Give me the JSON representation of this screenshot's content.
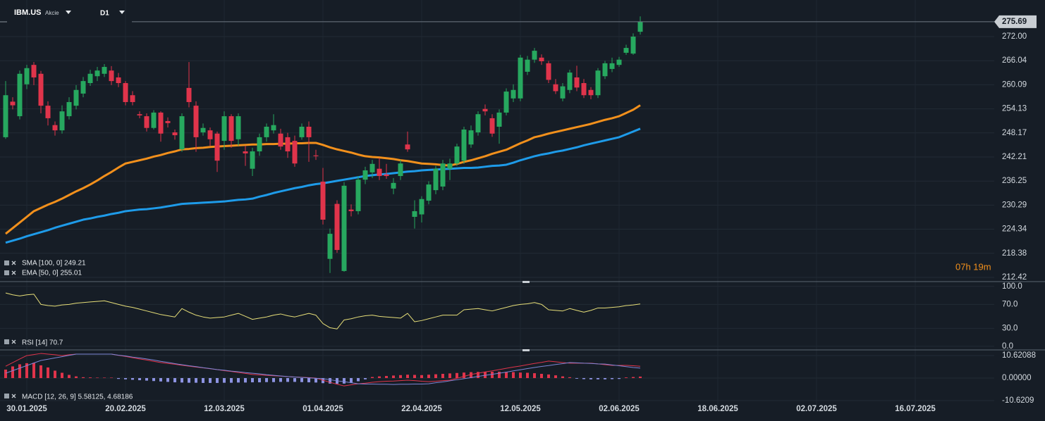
{
  "chart_data": [
    {
      "type": "candlestick",
      "symbol": "IBM.US",
      "instrument_type": "Akcie",
      "timeframe": "D1",
      "countdown": "07h 19m",
      "up_color": "#27a85f",
      "down_color": "#e0344b",
      "open": [
        247.1,
        255.9,
        252.3,
        260.2,
        265.0,
        262.8,
        254.9,
        250.1,
        248.8,
        252.3,
        254.9,
        257.9,
        260.5,
        262.2,
        262.8,
        263.6,
        261.9,
        260.5,
        257.5,
        252.8,
        252.3,
        249.4,
        253.2,
        251.1,
        248.3,
        244.1,
        259.3,
        254.9,
        248.3,
        248.8,
        248.0,
        246.2,
        252.3,
        246.6,
        243.6,
        239.3,
        243.6,
        247.1,
        248.8,
        248.0,
        247.1,
        246.2,
        247.1,
        249.7,
        242.6,
        236.1,
        217.0,
        230.6,
        214.0,
        229.2,
        228.8,
        236.6,
        238.4,
        239.3,
        237.9,
        234.4,
        237.5,
        245.3,
        227.4,
        228.0,
        231.4,
        234.0,
        234.9,
        239.3,
        240.6,
        241.3,
        245.3,
        248.3,
        254.1,
        251.8,
        249.7,
        253.2,
        256.7,
        256.7,
        263.3,
        266.3,
        266.8,
        265.4,
        260.2,
        256.7,
        258.8,
        261.9,
        260.5,
        258.8,
        257.5,
        262.2,
        264.0,
        265.0,
        268.0,
        267.8,
        273.2
      ],
      "high": [
        261.0,
        257.0,
        263.6,
        265.0,
        265.7,
        263.5,
        256.0,
        251.0,
        255.0,
        257.0,
        260.0,
        262.0,
        263.8,
        264.5,
        265.2,
        264.7,
        263.0,
        261.0,
        258.5,
        253.5,
        253.0,
        253.8,
        253.5,
        252.0,
        249.0,
        253.0,
        265.7,
        256.0,
        250.5,
        249.5,
        248.5,
        253.5,
        252.8,
        253.0,
        245.0,
        244.5,
        248.0,
        250.5,
        252.8,
        249.2,
        248.2,
        247.5,
        250.5,
        251.0,
        244.0,
        239.5,
        224.5,
        231.5,
        236.0,
        230.5,
        237.5,
        239.8,
        241.5,
        242.0,
        240.5,
        237.0,
        241.5,
        248.5,
        231.5,
        232.5,
        236.2,
        240.0,
        241.5,
        241.8,
        245.5,
        249.7,
        250.0,
        253.5,
        255.2,
        252.8,
        254.0,
        259.2,
        260.2,
        267.5,
        267.2,
        269.2,
        267.6,
        266.0,
        261.5,
        260.5,
        263.8,
        264.8,
        261.5,
        259.5,
        264.2,
        266.0,
        266.8,
        267.0,
        270.0,
        272.8,
        277.0
      ],
      "low": [
        246.7,
        254.0,
        251.5,
        259.0,
        260.0,
        253.0,
        250.0,
        247.5,
        248.0,
        251.5,
        254.0,
        257.0,
        259.8,
        261.0,
        262.0,
        260.0,
        259.5,
        255.0,
        255.0,
        251.8,
        248.5,
        249.0,
        246.0,
        249.5,
        246.5,
        243.5,
        254.5,
        243.5,
        247.5,
        245.0,
        238.5,
        244.0,
        244.5,
        245.0,
        240.0,
        237.5,
        242.5,
        246.0,
        248.0,
        244.0,
        242.0,
        239.8,
        246.5,
        241.0,
        241.5,
        225.5,
        213.5,
        218.5,
        213.8,
        227.5,
        228.0,
        235.5,
        237.0,
        236.5,
        236.8,
        233.0,
        236.5,
        243.5,
        224.5,
        226.0,
        230.5,
        233.0,
        234.0,
        236.5,
        240.0,
        240.5,
        244.5,
        247.5,
        252.5,
        247.2,
        245.5,
        252.5,
        255.8,
        256.0,
        262.5,
        265.5,
        265.0,
        260.5,
        257.8,
        256.0,
        258.0,
        258.5,
        256.8,
        256.5,
        256.8,
        261.5,
        263.2,
        264.5,
        267.5,
        267.5,
        272.5
      ],
      "close": [
        257.5,
        255.0,
        262.8,
        264.2,
        261.9,
        254.9,
        251.8,
        248.8,
        253.5,
        255.8,
        258.8,
        261.0,
        262.8,
        263.6,
        264.5,
        261.0,
        260.5,
        255.8,
        255.8,
        252.5,
        249.4,
        253.2,
        248.0,
        250.6,
        247.6,
        252.3,
        255.8,
        247.1,
        249.4,
        246.6,
        241.3,
        252.3,
        246.2,
        252.3,
        243.1,
        243.6,
        247.1,
        249.7,
        250.1,
        244.8,
        243.6,
        240.6,
        249.7,
        247.1,
        242.4,
        226.7,
        223.2,
        219.2,
        235.1,
        228.8,
        236.6,
        238.9,
        240.5,
        237.5,
        237.5,
        235.8,
        240.6,
        244.1,
        228.8,
        231.8,
        235.4,
        239.3,
        240.6,
        240.6,
        244.8,
        249.0,
        248.8,
        252.8,
        253.5,
        248.0,
        253.2,
        258.4,
        258.8,
        266.8,
        266.3,
        268.5,
        265.9,
        261.3,
        258.5,
        259.7,
        263.1,
        259.4,
        257.5,
        257.5,
        263.6,
        265.4,
        265.4,
        266.3,
        269.2,
        272.0,
        275.69
      ],
      "series": [
        {
          "name": "SMA [100, 0] 249.21",
          "color": "#1e9be9",
          "values": [
            221.0,
            221.5,
            222.0,
            222.6,
            223.1,
            223.6,
            224.1,
            224.7,
            225.2,
            225.7,
            226.2,
            226.7,
            227.0,
            227.4,
            227.7,
            228.1,
            228.4,
            228.8,
            229.0,
            229.2,
            229.3,
            229.5,
            229.7,
            230.0,
            230.3,
            230.6,
            230.7,
            230.8,
            230.9,
            231.0,
            231.1,
            231.2,
            231.4,
            231.6,
            231.7,
            231.9,
            232.4,
            232.8,
            233.3,
            233.7,
            234.1,
            234.5,
            234.8,
            235.2,
            235.5,
            235.7,
            236.0,
            236.3,
            236.6,
            236.9,
            237.2,
            237.5,
            237.7,
            237.9,
            238.0,
            238.2,
            238.4,
            238.6,
            238.7,
            238.9,
            239.0,
            239.1,
            239.2,
            239.3,
            239.4,
            239.5,
            239.5,
            239.6,
            239.8,
            240.0,
            240.1,
            240.3,
            240.8,
            241.4,
            241.9,
            242.4,
            242.8,
            243.1,
            243.5,
            243.8,
            244.2,
            244.6,
            245.1,
            245.5,
            245.9,
            246.3,
            246.7,
            247.1,
            247.8,
            248.5,
            249.21
          ]
        },
        {
          "name": "EMA [50, 0] 255.01",
          "color": "#f2901c",
          "values": [
            223.2,
            224.6,
            226.0,
            227.4,
            228.8,
            229.6,
            230.4,
            231.1,
            231.9,
            232.8,
            233.7,
            234.5,
            235.4,
            236.4,
            237.5,
            238.5,
            239.6,
            240.6,
            241.0,
            241.4,
            241.8,
            242.3,
            242.7,
            243.2,
            243.6,
            244.1,
            244.2,
            244.4,
            244.5,
            244.7,
            244.8,
            244.9,
            245.0,
            245.1,
            245.2,
            245.3,
            245.3,
            245.4,
            245.4,
            245.5,
            245.5,
            245.6,
            245.6,
            245.7,
            245.7,
            245.2,
            244.6,
            244.1,
            243.7,
            243.3,
            242.8,
            242.4,
            242.2,
            242.1,
            241.9,
            241.7,
            241.4,
            241.2,
            240.9,
            240.6,
            240.5,
            240.4,
            240.2,
            240.1,
            240.5,
            241.0,
            241.4,
            241.9,
            242.4,
            243.0,
            243.5,
            244.0,
            244.8,
            245.6,
            246.3,
            247.1,
            247.5,
            248.0,
            248.4,
            248.8,
            249.2,
            249.6,
            250.0,
            250.4,
            250.9,
            251.4,
            251.8,
            252.3,
            253.1,
            253.9,
            255.01
          ]
        }
      ],
      "ylim": [
        211.37,
        281.06
      ],
      "yticks": [
        {
          "value": 272,
          "label": "272.00"
        },
        266.04,
        260.09,
        254.13,
        248.17,
        242.21,
        236.25,
        230.29,
        224.34,
        218.38,
        212.42
      ],
      "grid": true
    },
    {
      "type": "line",
      "series": [
        {
          "name": "RSI [14] 70.7",
          "color": "#e6de78",
          "values": [
            89,
            86,
            84,
            86,
            87,
            70,
            68,
            67,
            69,
            70,
            72,
            73,
            74,
            75,
            76,
            73,
            70,
            67,
            65,
            62,
            59,
            56,
            53,
            51,
            49,
            63,
            57,
            52,
            49,
            47,
            48,
            49,
            52,
            55,
            50,
            45,
            47,
            49,
            52,
            54,
            51,
            49,
            52,
            55,
            52,
            38,
            31,
            29,
            44,
            46,
            49,
            51,
            52,
            50,
            49,
            48,
            47,
            55,
            41,
            43,
            46,
            49,
            52,
            52,
            52,
            61,
            62,
            63,
            61,
            59,
            62,
            65,
            68,
            70,
            71,
            73,
            70,
            61,
            60,
            59,
            63,
            60,
            57,
            60,
            64,
            64,
            65,
            66,
            68,
            69,
            70.7
          ]
        }
      ],
      "ylim": [
        -6,
        108
      ],
      "yticks": [
        {
          "value": 100,
          "label": "100.0"
        },
        {
          "value": 70,
          "label": "70.0"
        },
        {
          "value": 30,
          "label": "30.0"
        },
        {
          "value": 0,
          "label": "0.0"
        }
      ],
      "grid": true
    },
    {
      "type": "macd",
      "label": "MACD [12, 26, 9] 5.58125, 4.68186",
      "series": [
        {
          "color": "#e0344b",
          "values": [
            5.6,
            7.3,
            9.0,
            10.6,
            11.1,
            11.6,
            11.3,
            11.0,
            10.6,
            11.0,
            11.3,
            11.3,
            11.3,
            11.3,
            11.3,
            11.3,
            10.7,
            10.2,
            9.6,
            9.0,
            8.5,
            7.9,
            7.3,
            6.9,
            6.5,
            6.0,
            5.6,
            5.2,
            4.8,
            4.4,
            4.0,
            3.5,
            3.1,
            2.6,
            2.2,
            1.7,
            1.5,
            1.3,
            1.1,
            0.9,
            0.7,
            0.5,
            0.4,
            0.2,
            0,
            -1.0,
            -2.0,
            -2.9,
            -3.7,
            -3.2,
            -2.7,
            -2.4,
            -2.0,
            -1.7,
            -1.5,
            -1.4,
            -1.2,
            -1.0,
            -1.2,
            -1.5,
            -1.7,
            -1.5,
            -1.2,
            -1.0,
            -0.1,
            0.8,
            1.7,
            2.3,
            2.9,
            3.4,
            4.0,
            4.6,
            5.2,
            5.7,
            6.3,
            6.9,
            7.4,
            8.0,
            7.7,
            7.3,
            7.0,
            7.0,
            7.0,
            7.0,
            6.7,
            6.3,
            6.0,
            6.0,
            6.0,
            5.8,
            5.58125
          ]
        },
        {
          "color": "#7d86d6",
          "values": [
            2.3,
            3.5,
            4.7,
            5.9,
            7.1,
            8.3,
            8.9,
            9.5,
            10.1,
            10.7,
            11.3,
            11.3,
            11.3,
            11.3,
            11.3,
            11.3,
            10.8,
            10.4,
            9.9,
            9.5,
            9.0,
            8.5,
            7.9,
            7.4,
            6.8,
            6.3,
            5.8,
            5.4,
            4.9,
            4.5,
            4.0,
            3.7,
            3.3,
            3.0,
            2.6,
            2.3,
            2.0,
            1.6,
            1.3,
            1.0,
            0.7,
            0.5,
            0.3,
            0.1,
            -0.1,
            -0.3,
            -0.8,
            -1.3,
            -1.7,
            -2.2,
            -2.7,
            -2.8,
            -2.8,
            -2.9,
            -2.9,
            -3.0,
            -2.9,
            -2.9,
            -2.8,
            -2.8,
            -2.7,
            -2.2,
            -1.8,
            -1.3,
            -0.8,
            -0.3,
            0.2,
            0.8,
            1.3,
            1.8,
            2.3,
            2.8,
            3.4,
            3.9,
            4.5,
            5.0,
            5.5,
            5.9,
            6.4,
            6.8,
            7.3,
            7.2,
            7.0,
            6.9,
            6.7,
            6.6,
            6.2,
            5.8,
            5.4,
            5.0,
            4.68186
          ]
        }
      ],
      "histogram": {
        "up_color": "#e0344b",
        "down_color": "#8d93e2",
        "values": [
          4.0,
          5.5,
          6.5,
          7.0,
          7.2,
          6.0,
          5.0,
          3.5,
          2.5,
          1.5,
          0.8,
          0.4,
          0.3,
          0.2,
          0.2,
          0.2,
          -0.4,
          -0.6,
          -0.8,
          -1.0,
          -1.2,
          -1.4,
          -1.6,
          -1.8,
          -2.0,
          -2.1,
          -2.2,
          -2.2,
          -2.3,
          -2.3,
          -2.3,
          -2.2,
          -2.2,
          -2.1,
          -2.1,
          -2.0,
          -2.0,
          -1.9,
          -1.9,
          -1.8,
          -1.8,
          -1.8,
          -1.9,
          -2.0,
          -2.1,
          -2.4,
          -2.6,
          -2.7,
          -2.6,
          -2.2,
          -1.5,
          -0.6,
          0.5,
          0.8,
          1.0,
          1.2,
          1.4,
          1.6,
          1.5,
          1.4,
          1.6,
          1.8,
          2.0,
          2.2,
          2.4,
          2.6,
          2.8,
          2.9,
          3.0,
          3.0,
          3.0,
          2.9,
          2.8,
          2.6,
          2.5,
          2.3,
          2.0,
          1.7,
          1.3,
          0.8,
          0.4,
          -0.3,
          -0.5,
          -0.6,
          -0.6,
          -0.6,
          -0.5,
          -0.4,
          0.3,
          0.5,
          0.7
        ]
      },
      "ylim": [
        -12.6,
        13.28
      ],
      "yticks": [
        {
          "value": 10.62088,
          "label": "10.62088"
        },
        {
          "value": 0,
          "label": "0.00000"
        },
        {
          "value": -10.6209,
          "label": "-10.6209"
        }
      ],
      "x_labels": [
        "30.01.2025",
        "20.02.2025",
        "12.03.2025",
        "01.04.2025",
        "22.04.2025",
        "12.05.2025",
        "02.06.2025",
        "18.06.2025",
        "02.07.2025",
        "16.07.2025"
      ],
      "grid": true
    }
  ]
}
